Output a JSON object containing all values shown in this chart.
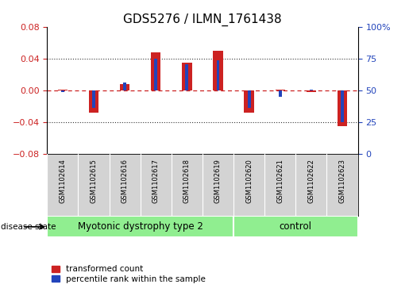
{
  "title": "GDS5276 / ILMN_1761438",
  "samples": [
    "GSM1102614",
    "GSM1102615",
    "GSM1102616",
    "GSM1102617",
    "GSM1102618",
    "GSM1102619",
    "GSM1102620",
    "GSM1102621",
    "GSM1102622",
    "GSM1102623"
  ],
  "red_values": [
    0.001,
    -0.028,
    0.008,
    0.048,
    0.035,
    0.05,
    -0.028,
    0.001,
    -0.002,
    -0.045
  ],
  "blue_values": [
    -0.002,
    -0.022,
    0.01,
    0.04,
    0.033,
    0.038,
    -0.022,
    -0.008,
    0.001,
    -0.04
  ],
  "group1_label": "Myotonic dystrophy type 2",
  "group1_count": 6,
  "group2_label": "control",
  "group2_count": 4,
  "disease_state_label": "disease state",
  "ylim": [
    -0.08,
    0.08
  ],
  "left_yticks": [
    -0.08,
    -0.04,
    0.0,
    0.04,
    0.08
  ],
  "right_yticks": [
    0,
    25,
    50,
    75,
    100
  ],
  "red_color": "#CC2222",
  "blue_color": "#2244BB",
  "background_plot": "#FFFFFF",
  "background_label": "#D3D3D3",
  "background_group": "#90EE90",
  "dotted_color": "#333333",
  "zero_line_color": "#CC2222",
  "legend_red_label": "transformed count",
  "legend_blue_label": "percentile rank within the sample",
  "title_fontsize": 11,
  "tick_fontsize": 8,
  "label_fontsize": 6,
  "group_fontsize": 8.5
}
